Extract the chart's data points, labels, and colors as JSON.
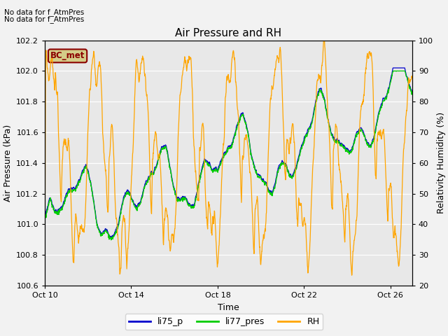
{
  "title": "Air Pressure and RH",
  "xlabel": "Time",
  "ylabel_left": "Air Pressure (kPa)",
  "ylabel_right": "Relativity Humidity (%)",
  "annotation1": "No data for f_AtmPres",
  "annotation2": "No data for f_AtmPres",
  "box_label": "BC_met",
  "legend_labels": [
    "li75_p",
    "li77_pres",
    "RH"
  ],
  "legend_colors": [
    "#0000cc",
    "#00cc00",
    "#ffa500"
  ],
  "ylim_left": [
    100.6,
    102.2
  ],
  "ylim_right": [
    20,
    100
  ],
  "yticks_left": [
    100.6,
    100.8,
    101.0,
    101.2,
    101.4,
    101.6,
    101.8,
    102.0,
    102.2
  ],
  "yticks_right": [
    20,
    30,
    40,
    50,
    60,
    70,
    80,
    90,
    100
  ],
  "bg_color": "#e8e8e8",
  "fig_bg": "#f2f2f2",
  "xtick_days": [
    10,
    14,
    18,
    22,
    26
  ],
  "xlim": [
    0,
    17
  ]
}
